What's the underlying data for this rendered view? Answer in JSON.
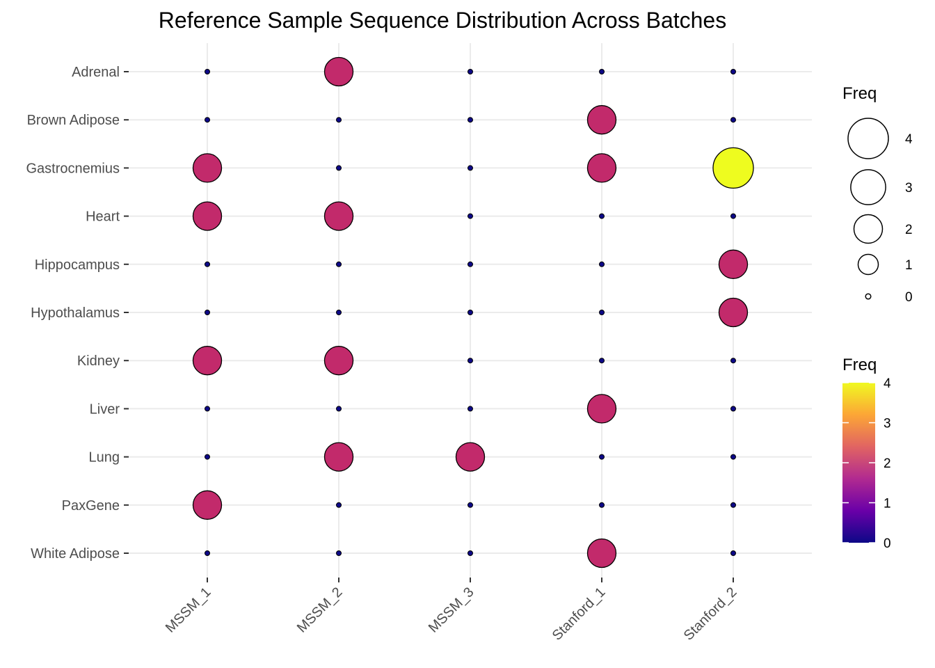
{
  "chart_data": {
    "type": "scatter",
    "title": "Reference Sample Sequence Distribution Across Batches",
    "xlabel": "",
    "ylabel": "",
    "x_categories": [
      "MSSM_1",
      "MSSM_2",
      "MSSM_3",
      "Stanford_1",
      "Stanford_2"
    ],
    "y_categories": [
      "Adrenal",
      "Brown Adipose",
      "Gastrocnemius",
      "Heart",
      "Hippocampus",
      "Hypothalamus",
      "Kidney",
      "Liver",
      "Lung",
      "PaxGene",
      "White Adipose"
    ],
    "freq_matrix": [
      [
        0,
        2,
        0,
        0,
        0
      ],
      [
        0,
        0,
        0,
        2,
        0
      ],
      [
        2,
        0,
        0,
        2,
        4
      ],
      [
        2,
        2,
        0,
        0,
        0
      ],
      [
        0,
        0,
        0,
        0,
        2
      ],
      [
        0,
        0,
        0,
        0,
        2
      ],
      [
        2,
        2,
        0,
        0,
        0
      ],
      [
        0,
        0,
        0,
        2,
        0
      ],
      [
        0,
        2,
        2,
        0,
        0
      ],
      [
        2,
        0,
        0,
        0,
        0
      ],
      [
        0,
        0,
        0,
        2,
        0
      ]
    ],
    "size_legend": {
      "title": "Freq",
      "values": [
        4,
        3,
        2,
        1,
        0
      ]
    },
    "color_legend": {
      "title": "Freq",
      "ticks": [
        4,
        3,
        2,
        1,
        0
      ],
      "range": [
        0,
        4
      ],
      "palette": [
        "#0d0887",
        "#6a00a8",
        "#b12a90",
        "#e16462",
        "#fca636",
        "#f0f921"
      ]
    },
    "point_colors": {
      "0": "#0d0887",
      "2": "#c22a6b",
      "4": "#eefc1f"
    },
    "grid": true,
    "legend_position": "right"
  }
}
